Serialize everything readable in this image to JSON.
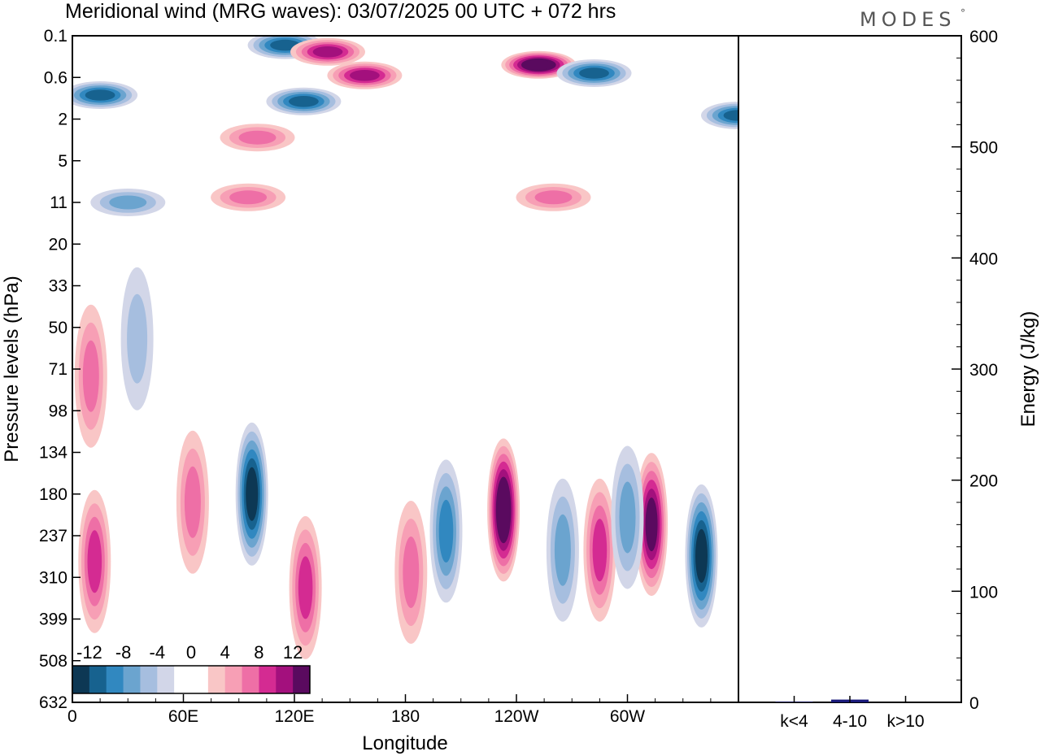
{
  "chart_data": {
    "type": "heatmap",
    "title": "Meridional wind (MRG waves):  03/07/2025  00 UTC  + 072 hrs",
    "brand": "MODES",
    "brand_mark": "°",
    "xlabel": "Longitude",
    "ylabel": "Pressure levels (hPa)",
    "x_ticks": [
      "0",
      "60E",
      "120E",
      "180",
      "120W",
      "60W"
    ],
    "x_tick_degrees": [
      0,
      60,
      120,
      180,
      240,
      300
    ],
    "x_range_degrees": [
      0,
      360
    ],
    "y_ticks": [
      "0.1",
      "0.6",
      "2",
      "5",
      "11",
      "20",
      "33",
      "50",
      "71",
      "98",
      "134",
      "180",
      "237",
      "310",
      "399",
      "508",
      "632"
    ],
    "colorbar": {
      "labels": [
        "-12",
        "-8",
        "-4",
        "0",
        "4",
        "8",
        "12"
      ],
      "colors": [
        "#0d3854",
        "#17628f",
        "#3188c0",
        "#6ba4cf",
        "#a6bedf",
        "#d2d6e8",
        "#ffffff",
        "#ffffff",
        "#f9c6c6",
        "#f79fb5",
        "#ee6fa6",
        "#d42b92",
        "#a3107d",
        "#5a0a5f"
      ]
    },
    "features": [
      {
        "lon": 115,
        "p": 0.15,
        "v": -10
      },
      {
        "lon": 138,
        "p": 0.2,
        "v": 10
      },
      {
        "lon": 158,
        "p": 0.55,
        "v": 10
      },
      {
        "lon": 252,
        "p": 0.35,
        "v": 14
      },
      {
        "lon": 282,
        "p": 0.5,
        "v": -10
      },
      {
        "lon": 15,
        "p": 1.0,
        "v": -10
      },
      {
        "lon": 125,
        "p": 1.2,
        "v": -10
      },
      {
        "lon": 360,
        "p": 1.8,
        "v": -10
      },
      {
        "lon": 100,
        "p": 3.0,
        "v": 6
      },
      {
        "lon": 30,
        "p": 11.0,
        "v": -6
      },
      {
        "lon": 95,
        "p": 10.0,
        "v": 6
      },
      {
        "lon": 260,
        "p": 10.0,
        "v": 6
      },
      {
        "lon": 35,
        "p": 55.0,
        "v": -4
      },
      {
        "lon": 10,
        "p": 75.0,
        "v": 6
      },
      {
        "lon": 97,
        "p": 180.0,
        "v": -13
      },
      {
        "lon": 233,
        "p": 200.0,
        "v": 14
      },
      {
        "lon": 313,
        "p": 220.0,
        "v": 12
      },
      {
        "lon": 340,
        "p": 270.0,
        "v": -12
      },
      {
        "lon": 12,
        "p": 280.0,
        "v": 8
      },
      {
        "lon": 126,
        "p": 330.0,
        "v": 8
      },
      {
        "lon": 202,
        "p": 230.0,
        "v": -8
      },
      {
        "lon": 265,
        "p": 260.0,
        "v": -6
      },
      {
        "lon": 285,
        "p": 260.0,
        "v": 8
      },
      {
        "lon": 300,
        "p": 210.0,
        "v": -6
      },
      {
        "lon": 65,
        "p": 190.0,
        "v": 6
      },
      {
        "lon": 183,
        "p": 300.0,
        "v": 6
      }
    ],
    "energy_axis": {
      "label": "Energy (J/kg)",
      "ticks": [
        "0",
        "100",
        "200",
        "300",
        "400",
        "500",
        "600"
      ],
      "range": [
        0,
        600
      ]
    },
    "energy_bars": {
      "categories": [
        "k<4",
        "4-10",
        "k>10"
      ],
      "values": [
        0.5,
        2.5,
        0
      ],
      "color": "#1a1a7a"
    }
  }
}
